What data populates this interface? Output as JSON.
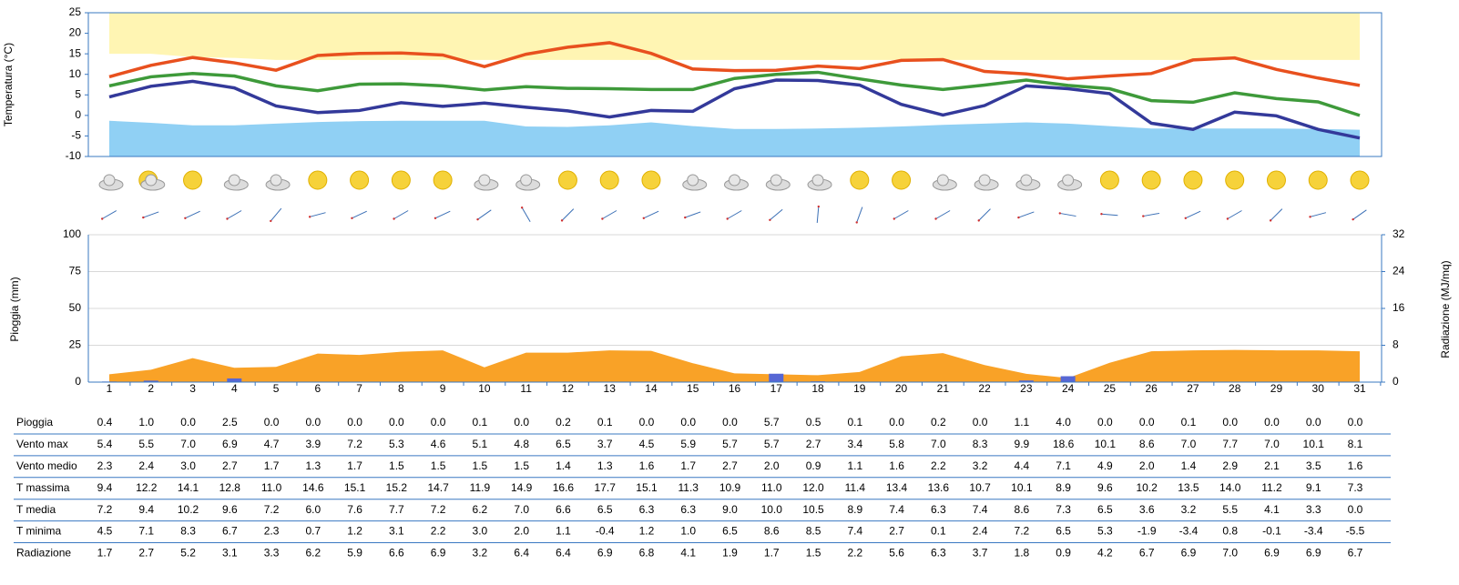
{
  "chart_data": [
    {
      "type": "line",
      "y_label": "Temperatura (°C)",
      "ylim": [
        -10,
        25
      ],
      "yticks": [
        -10,
        -5,
        0,
        5,
        10,
        15,
        20,
        25
      ],
      "bands": [
        {
          "color": "#fff3a6",
          "upper": [
            25,
            25,
            25,
            25,
            25,
            25,
            25,
            25,
            25,
            25,
            25,
            25,
            25,
            25,
            25,
            25,
            25,
            25,
            25,
            25,
            25,
            25,
            25,
            25,
            25,
            25,
            25,
            25,
            25,
            25,
            25
          ],
          "lower": [
            15,
            15,
            14.2,
            14,
            13.5,
            13.5,
            13.5,
            13.5,
            13.5,
            13.5,
            13.5,
            13.5,
            13.5,
            13.5,
            13.5,
            13.5,
            13.5,
            13.5,
            13.5,
            13.5,
            13.5,
            13.5,
            13.5,
            13.5,
            13.5,
            13.5,
            13.5,
            13.5,
            13.5,
            13.5,
            13.5
          ]
        },
        {
          "color": "#7cc8f2",
          "upper": [
            -1.3,
            -1.8,
            -2.4,
            -2.4,
            -2,
            -1.6,
            -1.4,
            -1.3,
            -1.3,
            -1.3,
            -2.7,
            -2.8,
            -2.4,
            -1.7,
            -2.6,
            -3.3,
            -3.3,
            -3.2,
            -3,
            -2.7,
            -2.3,
            -2,
            -1.7,
            -2,
            -2.6,
            -3.2,
            -3.2,
            -3.2,
            -3.2,
            -3.3,
            -3.5
          ],
          "lower": [
            -10,
            -10,
            -10,
            -10,
            -10,
            -10,
            -10,
            -10,
            -10,
            -10,
            -10,
            -10,
            -10,
            -10,
            -10,
            -10,
            -10,
            -10,
            -10,
            -10,
            -10,
            -10,
            -10,
            -10,
            -10,
            -10,
            -10,
            -10,
            -10,
            -10,
            -10
          ]
        }
      ],
      "series": [
        {
          "color": "#e8501e",
          "values": [
            9.4,
            12.2,
            14.1,
            12.8,
            11.0,
            14.6,
            15.1,
            15.2,
            14.7,
            11.9,
            14.9,
            16.6,
            17.7,
            15.1,
            11.3,
            10.9,
            11.0,
            12.0,
            11.4,
            13.4,
            13.6,
            10.7,
            10.1,
            8.9,
            9.6,
            10.2,
            13.5,
            14.0,
            11.2,
            9.1,
            7.3
          ]
        },
        {
          "color": "#3e9a3a",
          "values": [
            7.2,
            9.4,
            10.2,
            9.6,
            7.2,
            6.0,
            7.6,
            7.7,
            7.2,
            6.2,
            7.0,
            6.6,
            6.5,
            6.3,
            6.3,
            9.0,
            10.0,
            10.5,
            8.9,
            7.4,
            6.3,
            7.4,
            8.6,
            7.3,
            6.5,
            3.6,
            3.2,
            5.5,
            4.1,
            3.3,
            0
          ]
        },
        {
          "color": "#33399a",
          "values": [
            4.5,
            7.1,
            8.3,
            6.7,
            2.3,
            0.7,
            1.2,
            3.1,
            2.2,
            3.0,
            2.0,
            1.1,
            -0.4,
            1.2,
            1.0,
            6.5,
            8.6,
            8.5,
            7.4,
            2.7,
            0.1,
            2.4,
            7.2,
            6.5,
            5.3,
            -1.9,
            -3.4,
            0.8,
            -0.1,
            -3.4,
            -5.5
          ]
        }
      ]
    },
    {
      "type": "bar",
      "y_label": "Pioggia (mm)",
      "y2_label": "Radiazione (MJ/mq)",
      "categories": [
        1,
        2,
        3,
        4,
        5,
        6,
        7,
        8,
        9,
        10,
        11,
        12,
        13,
        14,
        15,
        16,
        17,
        18,
        19,
        20,
        21,
        22,
        23,
        24,
        25,
        26,
        27,
        28,
        29,
        30,
        31
      ],
      "ylim": [
        0,
        100
      ],
      "yticks": [
        0,
        25,
        50,
        75,
        100
      ],
      "y2lim": [
        0,
        32
      ],
      "y2ticks": [
        0,
        8,
        16,
        24,
        32
      ],
      "grid": true,
      "series": [
        {
          "type": "area",
          "axis": "y2",
          "color": "#f9a227",
          "values": [
            1.7,
            2.7,
            5.2,
            3.1,
            3.3,
            6.2,
            5.9,
            6.6,
            6.9,
            3.2,
            6.4,
            6.4,
            6.9,
            6.8,
            4.1,
            1.9,
            1.7,
            1.5,
            2.2,
            5.6,
            6.3,
            3.7,
            1.8,
            0.9,
            4.2,
            6.7,
            6.9,
            7.0,
            6.9,
            6.9,
            6.7
          ]
        },
        {
          "type": "bar",
          "color": "#5767d4",
          "values": [
            0.4,
            1.0,
            0,
            2.5,
            0,
            0,
            0,
            0,
            0,
            0.1,
            0,
            0.2,
            0.1,
            0,
            0,
            0,
            5.7,
            0.5,
            0.1,
            0,
            0.2,
            0,
            1.1,
            4.0,
            0,
            0,
            0.1,
            0,
            0,
            0,
            0
          ]
        }
      ]
    }
  ],
  "table": {
    "rows": [
      {
        "label": "Pioggia",
        "cells": [
          "0.4",
          "1.0",
          "0.0",
          "2.5",
          "0.0",
          "0.0",
          "0.0",
          "0.0",
          "0.0",
          "0.1",
          "0.0",
          "0.2",
          "0.1",
          "0.0",
          "0.0",
          "0.0",
          "5.7",
          "0.5",
          "0.1",
          "0.0",
          "0.2",
          "0.0",
          "1.1",
          "4.0",
          "0.0",
          "0.0",
          "0.1",
          "0.0",
          "0.0",
          "0.0",
          "0.0"
        ]
      },
      {
        "label": "Vento max",
        "cells": [
          "5.4",
          "5.5",
          "7.0",
          "6.9",
          "4.7",
          "3.9",
          "7.2",
          "5.3",
          "4.6",
          "5.1",
          "4.8",
          "6.5",
          "3.7",
          "4.5",
          "5.9",
          "5.7",
          "5.7",
          "2.7",
          "3.4",
          "5.8",
          "7.0",
          "8.3",
          "9.9",
          "18.6",
          "10.1",
          "8.6",
          "7.0",
          "7.7",
          "7.0",
          "10.1",
          "8.1"
        ]
      },
      {
        "label": "Vento medio",
        "cells": [
          "2.3",
          "2.4",
          "3.0",
          "2.7",
          "1.7",
          "1.3",
          "1.7",
          "1.5",
          "1.5",
          "1.5",
          "1.5",
          "1.4",
          "1.3",
          "1.6",
          "1.7",
          "2.7",
          "2.0",
          "0.9",
          "1.1",
          "1.6",
          "2.2",
          "3.2",
          "4.4",
          "7.1",
          "4.9",
          "2.0",
          "1.4",
          "2.9",
          "2.1",
          "3.5",
          "1.6"
        ]
      },
      {
        "label": "T massima",
        "cells": [
          "9.4",
          "12.2",
          "14.1",
          "12.8",
          "11.0",
          "14.6",
          "15.1",
          "15.2",
          "14.7",
          "11.9",
          "14.9",
          "16.6",
          "17.7",
          "15.1",
          "11.3",
          "10.9",
          "11.0",
          "12.0",
          "11.4",
          "13.4",
          "13.6",
          "10.7",
          "10.1",
          "8.9",
          "9.6",
          "10.2",
          "13.5",
          "14.0",
          "11.2",
          "9.1",
          "7.3"
        ]
      },
      {
        "label": "T media",
        "cells": [
          "7.2",
          "9.4",
          "10.2",
          "9.6",
          "7.2",
          "6.0",
          "7.6",
          "7.7",
          "7.2",
          "6.2",
          "7.0",
          "6.6",
          "6.5",
          "6.3",
          "6.3",
          "9.0",
          "10.0",
          "10.5",
          "8.9",
          "7.4",
          "6.3",
          "7.4",
          "8.6",
          "7.3",
          "6.5",
          "3.6",
          "3.2",
          "5.5",
          "4.1",
          "3.3",
          "0.0"
        ]
      },
      {
        "label": "T minima",
        "cells": [
          "4.5",
          "7.1",
          "8.3",
          "6.7",
          "2.3",
          "0.7",
          "1.2",
          "3.1",
          "2.2",
          "3.0",
          "2.0",
          "1.1",
          "-0.4",
          "1.2",
          "1.0",
          "6.5",
          "8.6",
          "8.5",
          "7.4",
          "2.7",
          "0.1",
          "2.4",
          "7.2",
          "6.5",
          "5.3",
          "-1.9",
          "-3.4",
          "0.8",
          "-0.1",
          "-3.4",
          "-5.5"
        ]
      },
      {
        "label": "Radiazione",
        "cells": [
          "1.7",
          "2.7",
          "5.2",
          "3.1",
          "3.3",
          "6.2",
          "5.9",
          "6.6",
          "6.9",
          "3.2",
          "6.4",
          "6.4",
          "6.9",
          "6.8",
          "4.1",
          "1.9",
          "1.7",
          "1.5",
          "2.2",
          "5.6",
          "6.3",
          "3.7",
          "1.8",
          "0.9",
          "4.2",
          "6.7",
          "6.9",
          "7.0",
          "6.9",
          "6.9",
          "6.7"
        ]
      }
    ]
  }
}
